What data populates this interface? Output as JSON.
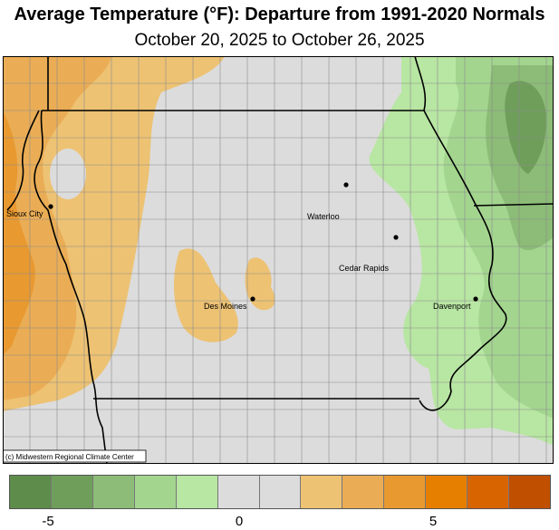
{
  "title": "Average Temperature (°F): Departure from 1991-2020 Normals",
  "subtitle": "October 20, 2025 to October 26, 2025",
  "credit": "(c) Midwestern Regional Climate Center",
  "cities": [
    {
      "name": "Sioux City"
    },
    {
      "name": "Waterloo"
    },
    {
      "name": "Cedar Rapids"
    },
    {
      "name": "Des Moines"
    },
    {
      "name": "Davenport"
    }
  ],
  "legend": {
    "colors": [
      "#5e8c4b",
      "#6f9e5b",
      "#8cbc77",
      "#a3d58f",
      "#b8e6a3",
      "#dcdcdc",
      "#dcdcdc",
      "#edc273",
      "#eaad55",
      "#e89930",
      "#e67f00",
      "#d86400",
      "#c05000"
    ],
    "ticks": [
      {
        "label": "-5"
      },
      {
        "label": "0"
      },
      {
        "label": "5"
      }
    ]
  },
  "colors": {
    "neutral": "#dcdcdc",
    "warm_light": "#edc273",
    "warm_mid": "#eaad55",
    "cool_light": "#b8e6a3",
    "cool_mid": "#a3d58f",
    "cool_dark": "#8cbc77"
  }
}
